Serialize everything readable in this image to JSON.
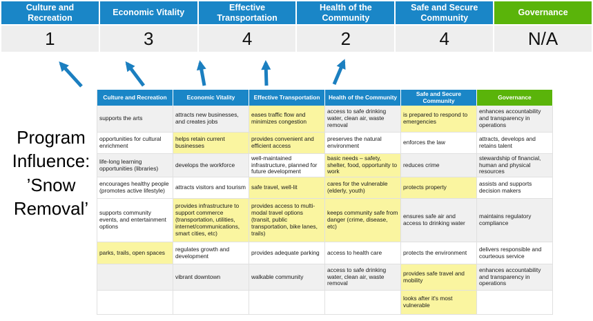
{
  "title": "Program Influence: ’Snow Removal’",
  "colors": {
    "header_blue": "#1a86c7",
    "header_green": "#5ab40a",
    "score_bg": "#eeeeee",
    "band_gray": "#f0f0f0",
    "highlight_yellow": "#faf5a0",
    "arrow_blue": "#1b7fc0"
  },
  "summary": {
    "columns": [
      {
        "label": "Culture and Recreation",
        "score": "1",
        "color": "blue"
      },
      {
        "label": "Economic Vitality",
        "score": "3",
        "color": "blue"
      },
      {
        "label": "Effective Transportation",
        "score": "4",
        "color": "blue"
      },
      {
        "label": "Health of the Community",
        "score": "2",
        "color": "blue"
      },
      {
        "label": "Safe and Secure Community",
        "score": "4",
        "color": "blue"
      },
      {
        "label": "Governance",
        "score": "N/A",
        "color": "green"
      }
    ]
  },
  "matrix": {
    "headers": [
      {
        "label": "Culture and Recreation",
        "color": "blue"
      },
      {
        "label": "Economic Vitality",
        "color": "blue"
      },
      {
        "label": "Effective Transportation",
        "color": "blue"
      },
      {
        "label": "Health of the Community",
        "color": "blue"
      },
      {
        "label": "Safe and Secure Community",
        "color": "blue"
      },
      {
        "label": "Governance",
        "color": "green"
      }
    ],
    "rows": [
      {
        "cells": [
          {
            "text": "supports the arts",
            "bg": "gray"
          },
          {
            "text": "attracts new businesses, and creates jobs",
            "bg": "gray"
          },
          {
            "text": "eases traffic flow and minimizes congestion",
            "bg": "yellow"
          },
          {
            "text": "access to safe drinking water, clean air, waste removal",
            "bg": "gray"
          },
          {
            "text": "is prepared to respond to emergencies",
            "bg": "yellow"
          },
          {
            "text": "enhances accountability and transparency in operations",
            "bg": "gray"
          }
        ]
      },
      {
        "cells": [
          {
            "text": "opportunities for cultural enrichment",
            "bg": "white"
          },
          {
            "text": "helps retain current businesses",
            "bg": "yellow"
          },
          {
            "text": "provides convenient and efficient access",
            "bg": "yellow"
          },
          {
            "text": "preserves the natural environment",
            "bg": "white"
          },
          {
            "text": "enforces the law",
            "bg": "white"
          },
          {
            "text": "attracts, develops and retains talent",
            "bg": "white"
          }
        ]
      },
      {
        "cells": [
          {
            "text": "life-long learning opportunities (libraries)",
            "bg": "gray"
          },
          {
            "text": "develops the workforce",
            "bg": "gray"
          },
          {
            "text": "well-maintained infrastructure, planned for future development",
            "bg": "white"
          },
          {
            "text": "basic needs – safety, shelter, food, opportunity to work",
            "bg": "yellow"
          },
          {
            "text": "reduces crime",
            "bg": "gray"
          },
          {
            "text": "stewardship of financial, human and physical resources",
            "bg": "gray"
          }
        ]
      },
      {
        "cells": [
          {
            "text": "encourages healthy people (promotes active lifestyle)",
            "bg": "white"
          },
          {
            "text": "attracts visitors and tourism",
            "bg": "white"
          },
          {
            "text": "safe travel, well-lit",
            "bg": "yellow"
          },
          {
            "text": "cares for the vulnerable (elderly, youth)",
            "bg": "yellow"
          },
          {
            "text": "protects property",
            "bg": "yellow"
          },
          {
            "text": "assists and supports decision makers",
            "bg": "white"
          }
        ]
      },
      {
        "cells": [
          {
            "text": "supports community events, and entertainment options",
            "bg": "white"
          },
          {
            "text": "provides infrastructure to support commerce (transportation, utilities, internet/communications, smart cities, etc)",
            "bg": "yellow"
          },
          {
            "text": "provides access to multi-modal travel options (transit, public transportation, bike lanes, trails)",
            "bg": "yellow"
          },
          {
            "text": "keeps community safe from danger (crime, disease, etc)",
            "bg": "yellow"
          },
          {
            "text": "ensures safe air and access to drinking water",
            "bg": "gray"
          },
          {
            "text": "maintains regulatory compliance",
            "bg": "gray"
          }
        ]
      },
      {
        "cells": [
          {
            "text": "parks, trails, open spaces",
            "bg": "yellow"
          },
          {
            "text": "regulates growth and development",
            "bg": "white"
          },
          {
            "text": "provides adequate parking",
            "bg": "white"
          },
          {
            "text": "access to health care",
            "bg": "white"
          },
          {
            "text": "protects the environment",
            "bg": "white"
          },
          {
            "text": "delivers responsible and courteous service",
            "bg": "white"
          }
        ]
      },
      {
        "cells": [
          {
            "text": "",
            "bg": "gray"
          },
          {
            "text": "vibrant downtown",
            "bg": "gray"
          },
          {
            "text": "walkable community",
            "bg": "gray"
          },
          {
            "text": "access to safe drinking water, clean air, waste removal",
            "bg": "gray"
          },
          {
            "text": "provides safe travel and mobility",
            "bg": "yellow"
          },
          {
            "text": "enhances accountability and transparency in operations",
            "bg": "gray"
          }
        ]
      },
      {
        "cells": [
          {
            "text": "",
            "bg": "white"
          },
          {
            "text": "",
            "bg": "white"
          },
          {
            "text": "",
            "bg": "white"
          },
          {
            "text": "",
            "bg": "white"
          },
          {
            "text": "looks after it's most vulnerable",
            "bg": "yellow"
          },
          {
            "text": "",
            "bg": "white"
          }
        ]
      }
    ]
  }
}
